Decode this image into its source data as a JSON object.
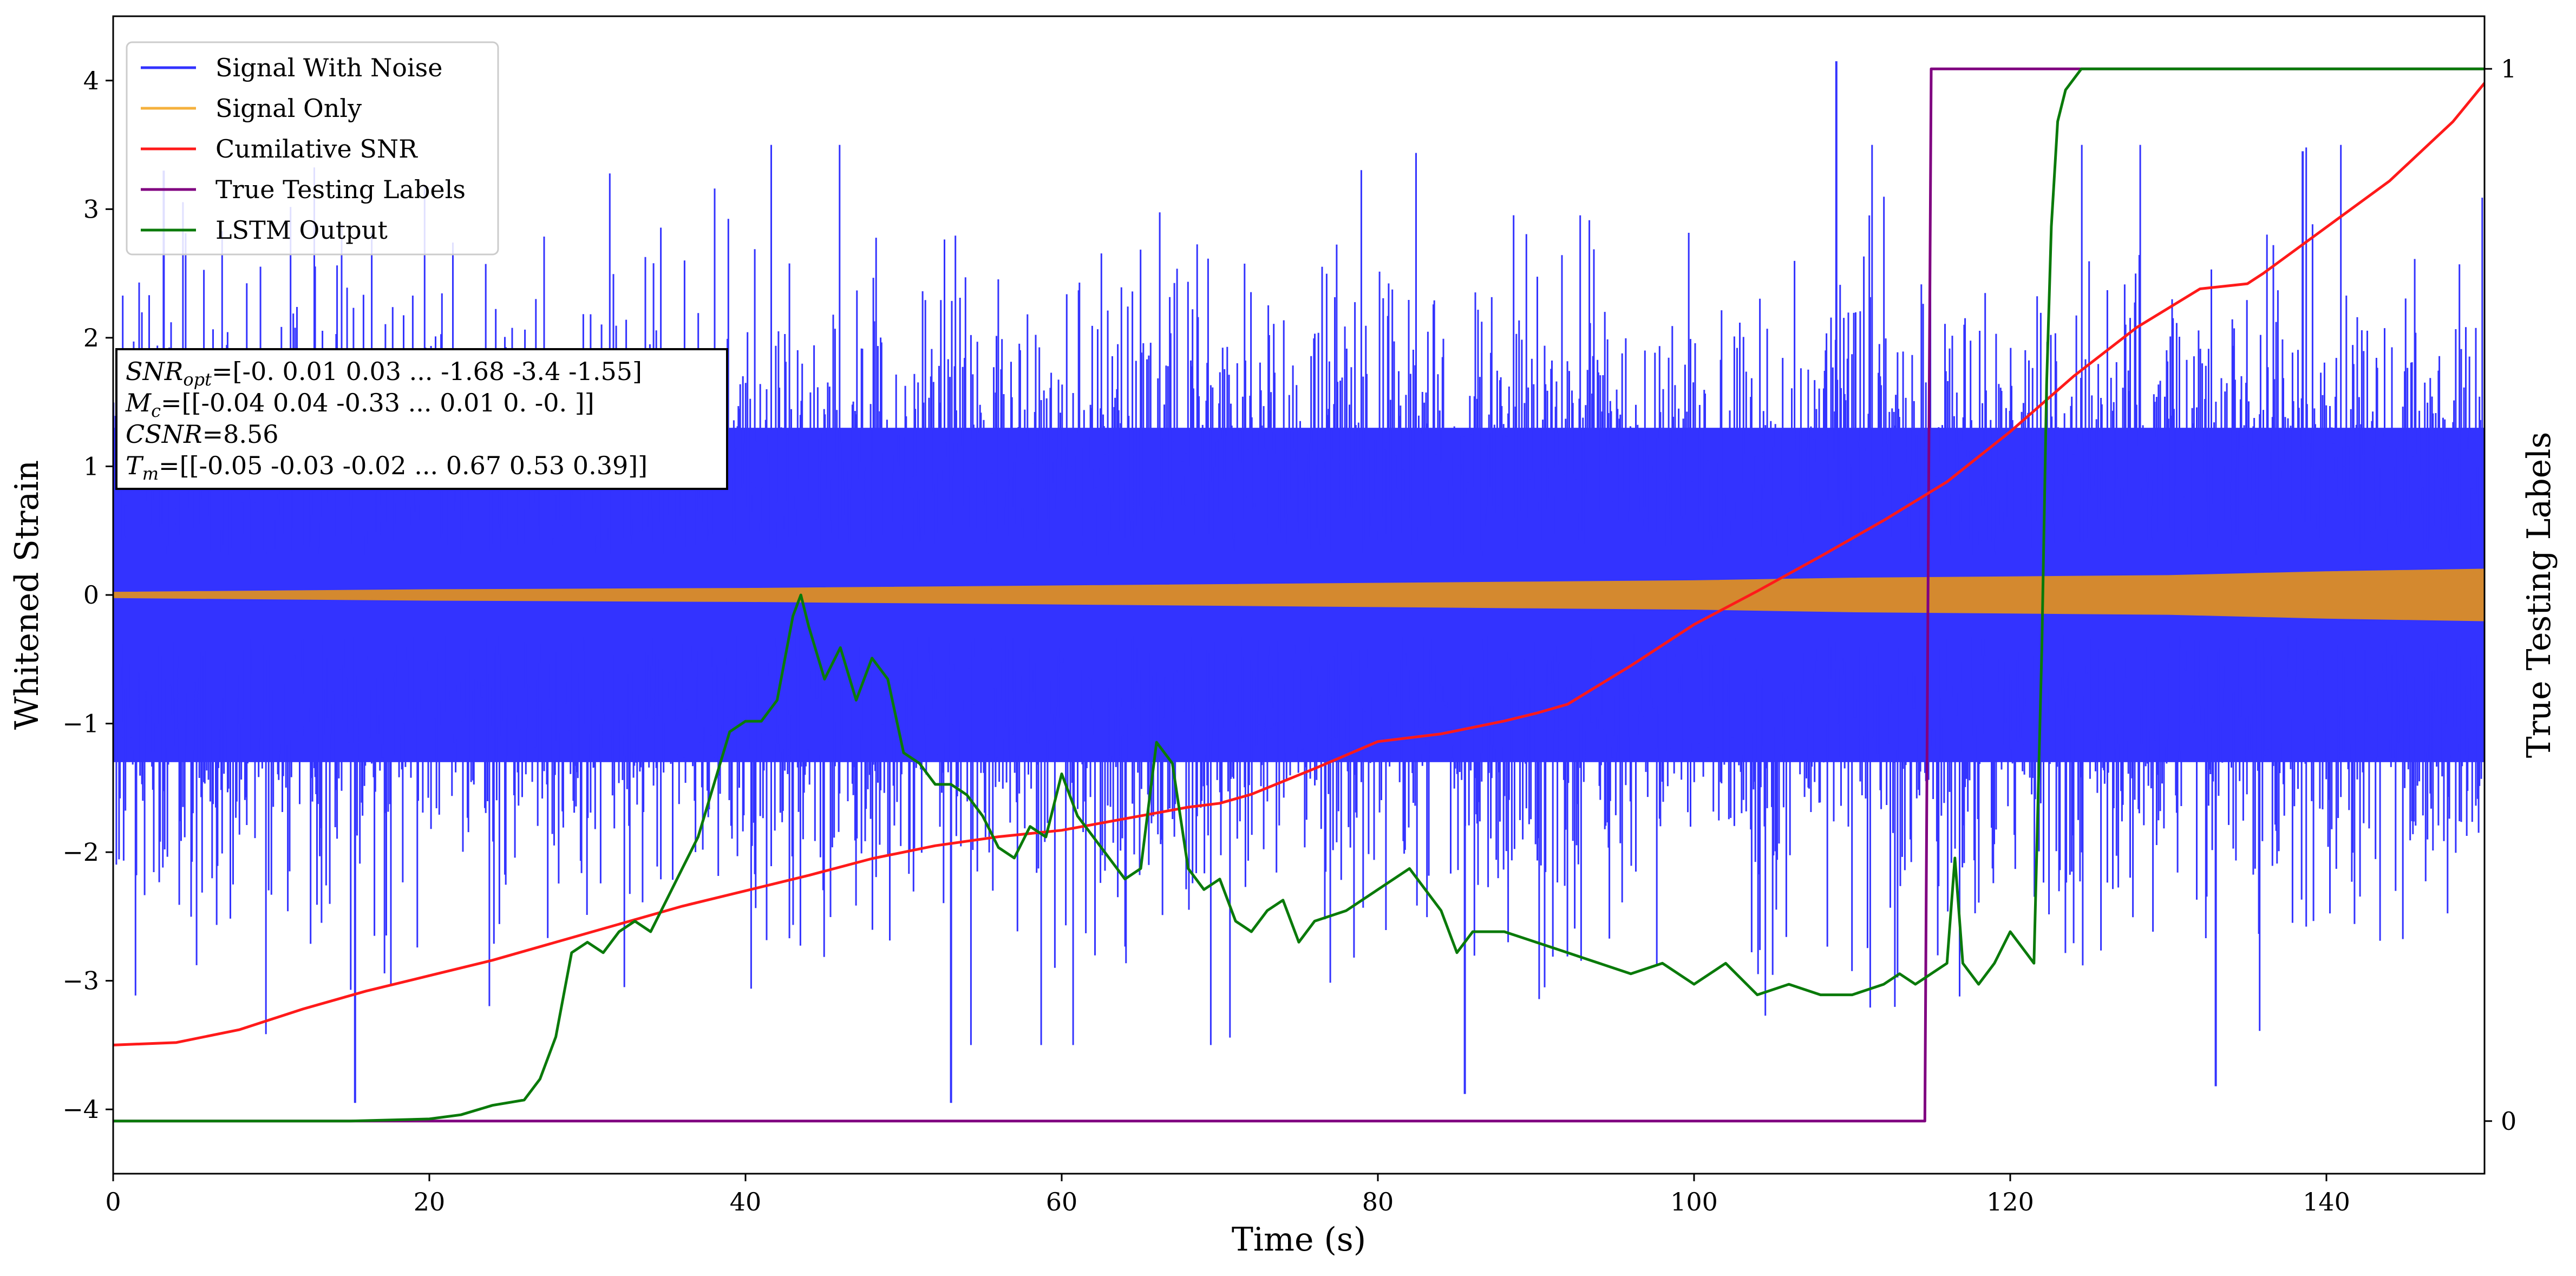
{
  "chart_data": {
    "type": "line",
    "xlabel": "Time (s)",
    "ylabel_left": "Whitened Strain",
    "ylabel_right": "True Testing Labels",
    "xlim": [
      0,
      150
    ],
    "ylim_left": [
      -4.5,
      4.5
    ],
    "ylim_right": [
      -0.05,
      1.05
    ],
    "x_ticks": [
      0,
      20,
      40,
      60,
      80,
      100,
      120,
      140
    ],
    "y_ticks_left": [
      -4,
      -3,
      -2,
      -1,
      0,
      1,
      2,
      3,
      4
    ],
    "y_ticks_right": [
      0,
      1
    ],
    "grid": false,
    "legend_position": "top-left",
    "legend": [
      {
        "label": "Signal With Noise",
        "color": "#3333ff"
      },
      {
        "label": "Signal Only",
        "color": "#f5b13d"
      },
      {
        "label": "Cumilative SNR",
        "color": "#ff1a1a"
      },
      {
        "label": "True Testing Labels",
        "color": "#800080"
      },
      {
        "label": "LSTM Output",
        "color": "#0a7a0a"
      }
    ],
    "annotation": {
      "lines": [
        {
          "symbol": "SNR",
          "sub": "opt",
          "text": "=[-0.    0.01  0.03 ... -1.68 -3.4  -1.55]"
        },
        {
          "symbol": "M",
          "sub": "c",
          "text": "=[[-0.04  0.04 -0.33 ...  0.01  0.   -0.  ]]"
        },
        {
          "symbol": "CSNR",
          "sub": "",
          "text": "=8.56"
        },
        {
          "symbol": "T",
          "sub": "m",
          "text": "=[[-0.05 -0.03 -0.02 ...  0.67  0.53  0.39]]"
        }
      ]
    },
    "series": [
      {
        "name": "Signal With Noise",
        "axis": "left",
        "color": "#3333ff",
        "style": "noise-band",
        "x_range": [
          0,
          150
        ],
        "typical_band": [
          -1.3,
          1.3
        ],
        "max_excursions": [
          [
            3.2,
            3.3
          ],
          [
            15.3,
            -3.95
          ],
          [
            53,
            -3.95
          ],
          [
            85.5,
            -3.88
          ],
          [
            109,
            4.15
          ],
          [
            133,
            -3.82
          ],
          [
            138.5,
            3.45
          ]
        ]
      },
      {
        "name": "Signal Only",
        "axis": "left",
        "color": "#d4892f",
        "style": "envelope",
        "x": [
          0,
          20,
          40,
          60,
          80,
          90,
          100,
          110,
          120,
          130,
          140,
          150
        ],
        "amplitude": [
          0.02,
          0.04,
          0.05,
          0.07,
          0.09,
          0.1,
          0.11,
          0.13,
          0.14,
          0.15,
          0.18,
          0.2
        ]
      },
      {
        "name": "Cumilative SNR",
        "axis": "left",
        "color": "#ff1a1a",
        "style": "line",
        "x": [
          0,
          4,
          8,
          12,
          16,
          20,
          24,
          28,
          32,
          36,
          40,
          44,
          48,
          52,
          56,
          60,
          64,
          68,
          70,
          72,
          76,
          80,
          84,
          88,
          90,
          92,
          96,
          100,
          104,
          108,
          112,
          116,
          120,
          124,
          128,
          132,
          135,
          136,
          140,
          144,
          148,
          150
        ],
        "y": [
          -3.5,
          -3.48,
          -3.38,
          -3.22,
          -3.08,
          -2.96,
          -2.84,
          -2.7,
          -2.56,
          -2.42,
          -2.3,
          -2.18,
          -2.05,
          -1.95,
          -1.88,
          -1.83,
          -1.74,
          -1.65,
          -1.62,
          -1.55,
          -1.35,
          -1.14,
          -1.08,
          -0.98,
          -0.92,
          -0.85,
          -0.55,
          -0.23,
          0.03,
          0.3,
          0.58,
          0.88,
          1.27,
          1.7,
          2.08,
          2.38,
          2.42,
          2.5,
          2.86,
          3.22,
          3.68,
          3.98
        ]
      },
      {
        "name": "True Testing Labels",
        "axis": "right",
        "color": "#800080",
        "style": "line",
        "x": [
          0,
          114.6,
          115,
          150
        ],
        "y": [
          0,
          0,
          1,
          1
        ]
      },
      {
        "name": "LSTM Output",
        "axis": "right",
        "color": "#0a7a0a",
        "style": "line",
        "x": [
          0,
          15,
          20,
          22,
          24,
          26,
          27,
          28,
          28.5,
          29,
          30,
          31,
          32,
          33,
          34,
          35,
          36,
          37,
          38,
          39,
          40,
          41,
          42,
          43,
          43.5,
          44,
          45,
          46,
          47,
          48,
          49,
          50,
          51,
          52,
          53,
          54,
          55,
          56,
          57,
          58,
          59,
          60,
          61,
          62,
          63,
          64,
          65,
          66,
          67,
          68,
          69,
          70,
          71,
          72,
          73,
          74,
          75,
          76,
          78,
          80,
          82,
          84,
          85,
          86,
          88,
          90,
          92,
          94,
          96,
          98,
          100,
          102,
          104,
          106,
          108,
          110,
          112,
          113,
          114,
          115,
          116,
          116.5,
          117,
          118,
          119,
          120,
          121,
          121.5,
          122,
          122.3,
          122.6,
          123,
          123.5,
          124,
          124.5,
          125,
          126,
          130,
          140,
          150
        ],
        "y": [
          0,
          0,
          0.002,
          0.006,
          0.015,
          0.02,
          0.04,
          0.08,
          0.12,
          0.16,
          0.17,
          0.16,
          0.18,
          0.19,
          0.18,
          0.21,
          0.24,
          0.27,
          0.32,
          0.37,
          0.38,
          0.38,
          0.4,
          0.48,
          0.5,
          0.47,
          0.42,
          0.45,
          0.4,
          0.44,
          0.42,
          0.35,
          0.34,
          0.32,
          0.32,
          0.31,
          0.29,
          0.26,
          0.25,
          0.28,
          0.27,
          0.33,
          0.29,
          0.27,
          0.25,
          0.23,
          0.24,
          0.36,
          0.34,
          0.24,
          0.22,
          0.23,
          0.19,
          0.18,
          0.2,
          0.21,
          0.17,
          0.19,
          0.2,
          0.22,
          0.24,
          0.2,
          0.16,
          0.18,
          0.18,
          0.17,
          0.16,
          0.15,
          0.14,
          0.15,
          0.13,
          0.15,
          0.12,
          0.13,
          0.12,
          0.12,
          0.13,
          0.14,
          0.13,
          0.14,
          0.15,
          0.25,
          0.15,
          0.13,
          0.15,
          0.18,
          0.16,
          0.15,
          0.45,
          0.7,
          0.85,
          0.95,
          0.98,
          0.99,
          1,
          1,
          1,
          1,
          1,
          1
        ]
      }
    ]
  }
}
